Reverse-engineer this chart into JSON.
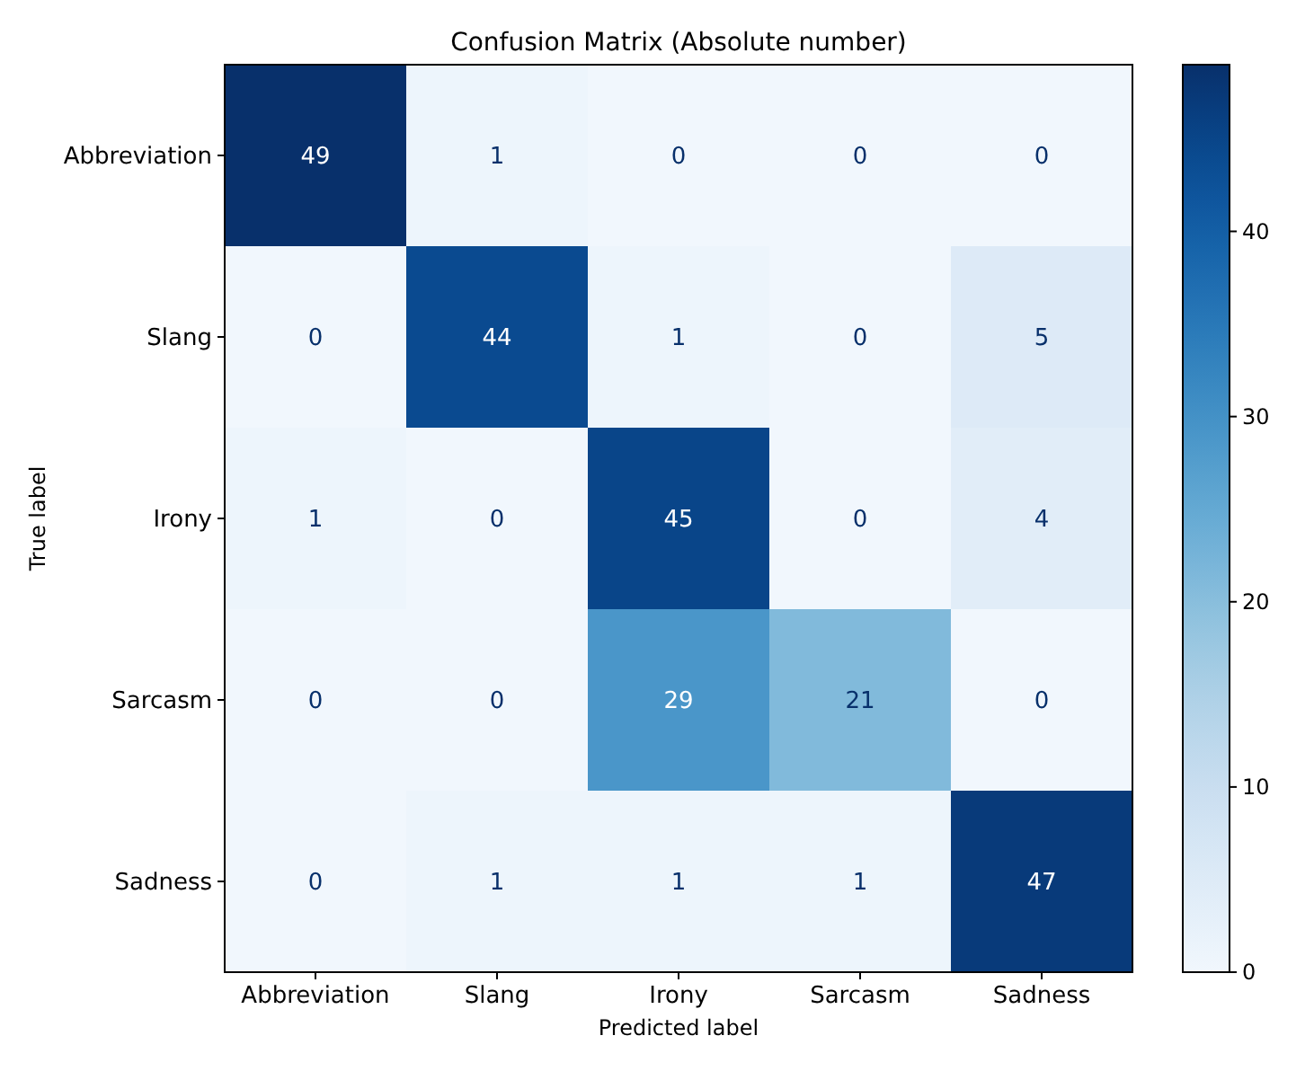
{
  "chart_data": {
    "type": "heatmap",
    "title": "Confusion Matrix (Absolute number)",
    "xlabel": "Predicted label",
    "ylabel": "True label",
    "categories": [
      "Abbreviation",
      "Slang",
      "Irony",
      "Sarcasm",
      "Sadness"
    ],
    "y_categories": [
      "Abbreviation",
      "Slang",
      "Irony",
      "Sarcasm",
      "Sadness"
    ],
    "cells": [
      [
        49,
        1,
        0,
        0,
        0
      ],
      [
        0,
        44,
        1,
        0,
        5
      ],
      [
        1,
        0,
        45,
        0,
        4
      ],
      [
        0,
        0,
        29,
        21,
        0
      ],
      [
        0,
        1,
        1,
        1,
        47
      ]
    ],
    "clim": [
      0,
      49
    ],
    "cticks": [
      0,
      10,
      20,
      30,
      40
    ],
    "data_labels": true
  }
}
